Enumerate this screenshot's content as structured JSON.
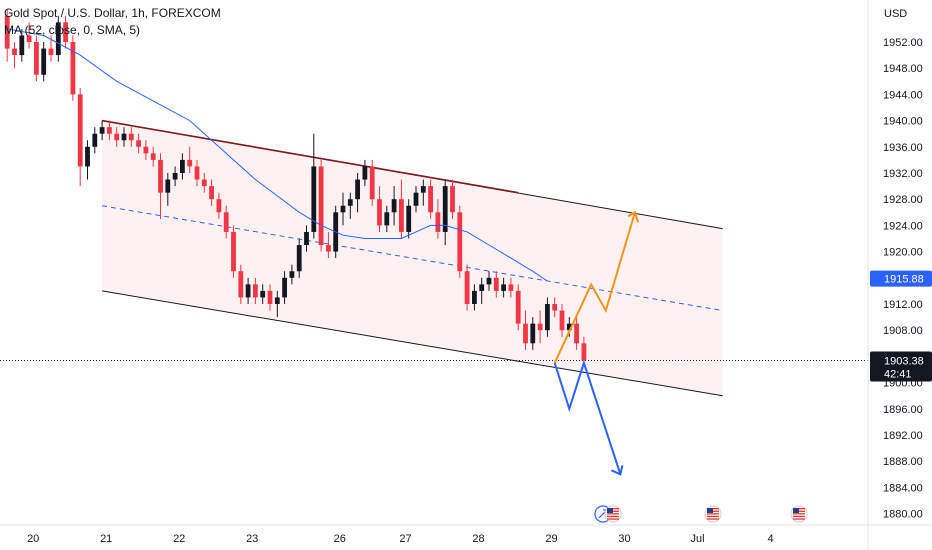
{
  "chart_data": {
    "type": "candlestick",
    "title": "Gold Spot / U.S. Dollar, 1h, FOREXCOM",
    "indicator_label": "MA (52, close, 0, SMA, 5)",
    "currency": "USD",
    "ylim": [
      1878,
      1958
    ],
    "y_ticks": [
      1880,
      1884,
      1888,
      1892,
      1896,
      1900,
      1904,
      1908,
      1912,
      1916,
      1920,
      1924,
      1928,
      1932,
      1936,
      1940,
      1944,
      1948,
      1952
    ],
    "x_ticks": [
      {
        "label": "20",
        "t": 0
      },
      {
        "label": "21",
        "t": 10
      },
      {
        "label": "22",
        "t": 20
      },
      {
        "label": "23",
        "t": 30
      },
      {
        "label": "26",
        "t": 42
      },
      {
        "label": "27",
        "t": 51
      },
      {
        "label": "28",
        "t": 61
      },
      {
        "label": "29",
        "t": 71
      },
      {
        "label": "30",
        "t": 81
      },
      {
        "label": "Jul",
        "t": 91
      },
      {
        "label": "4",
        "t": 101
      }
    ],
    "current_price": "1903.38",
    "countdown": "42:41",
    "ma_value_label": "1915.88",
    "candle_colors": {
      "up": "#089981",
      "down": "#f23645",
      "black": "#131722"
    },
    "candles_ohlc": [
      [
        1956,
        1957,
        1949,
        1951
      ],
      [
        1951,
        1952,
        1948,
        1950
      ],
      [
        1950,
        1954,
        1949,
        1953
      ],
      [
        1953,
        1955,
        1951,
        1952
      ],
      [
        1952,
        1953,
        1946,
        1947
      ],
      [
        1947,
        1952,
        1946,
        1951
      ],
      [
        1951,
        1953,
        1949,
        1950
      ],
      [
        1950,
        1956,
        1949,
        1955
      ],
      [
        1955,
        1956,
        1951,
        1952
      ],
      [
        1952,
        1953,
        1943,
        1944
      ],
      [
        1944,
        1945,
        1930,
        1933
      ],
      [
        1933,
        1937,
        1931,
        1936
      ],
      [
        1936,
        1939,
        1935,
        1938
      ],
      [
        1938,
        1940,
        1937,
        1939
      ],
      [
        1939,
        1940,
        1937,
        1938
      ],
      [
        1938,
        1939,
        1936,
        1937
      ],
      [
        1937,
        1939,
        1936,
        1938
      ],
      [
        1938,
        1939,
        1936,
        1937
      ],
      [
        1937,
        1938,
        1935,
        1936
      ],
      [
        1936,
        1937,
        1934,
        1935
      ],
      [
        1935,
        1936,
        1933,
        1934
      ],
      [
        1934,
        1935,
        1925,
        1929
      ],
      [
        1929,
        1932,
        1927,
        1931
      ],
      [
        1931,
        1933,
        1930,
        1932
      ],
      [
        1932,
        1935,
        1931,
        1934
      ],
      [
        1934,
        1936,
        1932,
        1933
      ],
      [
        1933,
        1934,
        1930,
        1931
      ],
      [
        1931,
        1932,
        1929,
        1930
      ],
      [
        1930,
        1931,
        1927,
        1928
      ],
      [
        1928,
        1929,
        1925,
        1926
      ],
      [
        1926,
        1927,
        1922,
        1923
      ],
      [
        1923,
        1924,
        1916,
        1917
      ],
      [
        1917,
        1918,
        1912,
        1913
      ],
      [
        1913,
        1916,
        1912,
        1915
      ],
      [
        1915,
        1916,
        1912,
        1913
      ],
      [
        1913,
        1915,
        1912,
        1914
      ],
      [
        1914,
        1915,
        1911,
        1912
      ],
      [
        1912,
        1914,
        1910,
        1913
      ],
      [
        1913,
        1917,
        1912,
        1916
      ],
      [
        1916,
        1918,
        1915,
        1917
      ],
      [
        1917,
        1922,
        1916,
        1921
      ],
      [
        1921,
        1924,
        1920,
        1923
      ],
      [
        1923,
        1938,
        1922,
        1933
      ],
      [
        1933,
        1934,
        1920,
        1921
      ],
      [
        1921,
        1923,
        1919,
        1920
      ],
      [
        1920,
        1927,
        1919,
        1926
      ],
      [
        1926,
        1929,
        1924,
        1927
      ],
      [
        1927,
        1929,
        1925,
        1928
      ],
      [
        1928,
        1932,
        1926,
        1931
      ],
      [
        1931,
        1934,
        1930,
        1933
      ],
      [
        1933,
        1934,
        1927,
        1928
      ],
      [
        1928,
        1930,
        1923,
        1924
      ],
      [
        1924,
        1927,
        1923,
        1926
      ],
      [
        1926,
        1930,
        1924,
        1928
      ],
      [
        1928,
        1931,
        1922,
        1923
      ],
      [
        1923,
        1928,
        1922,
        1927
      ],
      [
        1927,
        1930,
        1926,
        1929
      ],
      [
        1929,
        1931,
        1927,
        1930
      ],
      [
        1930,
        1931,
        1925,
        1926
      ],
      [
        1926,
        1928,
        1922,
        1923
      ],
      [
        1923,
        1931,
        1921,
        1930
      ],
      [
        1930,
        1931,
        1925,
        1926
      ],
      [
        1926,
        1927,
        1916,
        1917
      ],
      [
        1917,
        1918,
        1911,
        1912
      ],
      [
        1912,
        1915,
        1911,
        1914
      ],
      [
        1914,
        1916,
        1912,
        1915
      ],
      [
        1915,
        1917,
        1914,
        1916
      ],
      [
        1916,
        1917,
        1913,
        1914
      ],
      [
        1914,
        1916,
        1913,
        1915
      ],
      [
        1915,
        1916,
        1913,
        1914
      ],
      [
        1914,
        1915,
        1908,
        1909
      ],
      [
        1909,
        1911,
        1905,
        1906
      ],
      [
        1906,
        1910,
        1905,
        1909
      ],
      [
        1909,
        1911,
        1906,
        1908
      ],
      [
        1908,
        1913,
        1907,
        1912
      ],
      [
        1912,
        1913,
        1910,
        1911
      ],
      [
        1911,
        1912,
        1907,
        1908
      ],
      [
        1908,
        1910,
        1907,
        1909
      ],
      [
        1909,
        1910,
        1905,
        1906
      ],
      [
        1906,
        1907,
        1903,
        1903.38
      ]
    ],
    "ma": [
      [
        0,
        1954
      ],
      [
        5,
        1953
      ],
      [
        10,
        1950
      ],
      [
        15,
        1946
      ],
      [
        20,
        1943
      ],
      [
        25,
        1940
      ],
      [
        28,
        1937
      ],
      [
        31,
        1934
      ],
      [
        34,
        1931
      ],
      [
        37,
        1928.5
      ],
      [
        40,
        1926
      ],
      [
        43,
        1924
      ],
      [
        46,
        1922.5
      ],
      [
        49,
        1922
      ],
      [
        52,
        1922
      ],
      [
        54,
        1922
      ],
      [
        56,
        1923
      ],
      [
        58,
        1924
      ],
      [
        60,
        1924
      ],
      [
        63,
        1923
      ],
      [
        66,
        1921
      ],
      [
        69,
        1919
      ],
      [
        72,
        1917
      ],
      [
        74,
        1915.5
      ]
    ],
    "channel_upper": [
      [
        13,
        1940
      ],
      [
        98,
        1923.5
      ]
    ],
    "channel_lower": [
      [
        13,
        1914
      ],
      [
        98,
        1898
      ]
    ],
    "channel_mid": [
      [
        13,
        1927
      ],
      [
        98,
        1911
      ]
    ],
    "upper_dark_segment": [
      [
        13,
        1940
      ],
      [
        70,
        1929
      ]
    ],
    "bull_path": [
      [
        75,
        1903
      ],
      [
        80,
        1915
      ],
      [
        82,
        1911
      ],
      [
        86,
        1926
      ]
    ],
    "bear_path": [
      [
        75,
        1903
      ],
      [
        77,
        1896
      ],
      [
        79,
        1903
      ],
      [
        84,
        1886
      ]
    ]
  }
}
